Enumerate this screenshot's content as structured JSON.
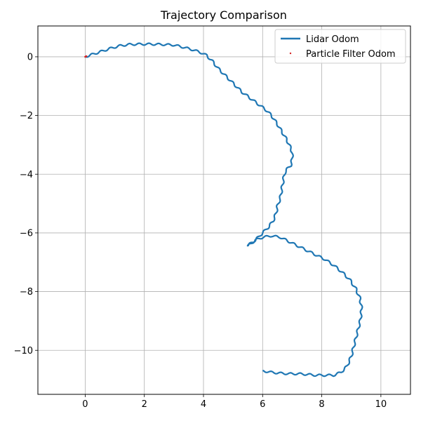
{
  "chart_data": {
    "type": "line",
    "title": "Trajectory Comparison",
    "xlabel": "",
    "ylabel": "",
    "xlim": [
      -1.6,
      11.0
    ],
    "ylim": [
      -11.5,
      1.05
    ],
    "xticks": [
      0,
      2,
      4,
      6,
      8,
      10
    ],
    "yticks": [
      0,
      -2,
      -4,
      -6,
      -8,
      -10
    ],
    "xtick_labels": [
      "0",
      "2",
      "4",
      "6",
      "8",
      "10"
    ],
    "ytick_labels": [
      "0",
      "−2",
      "−4",
      "−6",
      "−8",
      "−10"
    ],
    "grid": true,
    "legend_position": "upper right",
    "series": [
      {
        "name": "Lidar Odom",
        "color": "#1f77b4",
        "style": "line",
        "wiggle": true,
        "x": [
          0,
          0.3,
          0.6,
          0.9,
          1.2,
          1.5,
          1.8,
          2.2,
          2.6,
          3.0,
          3.3,
          3.6,
          3.9,
          4.1,
          4.3,
          4.5,
          4.7,
          4.9,
          5.1,
          5.3,
          5.5,
          5.7,
          5.9,
          6.1,
          6.3,
          6.5,
          6.65,
          6.8,
          6.9,
          7.0,
          7.0,
          6.95,
          6.85,
          6.75,
          6.7,
          6.65,
          6.6,
          6.5,
          6.45,
          6.35,
          6.2,
          6.05,
          5.9,
          5.75,
          5.6,
          5.5,
          5.75,
          6.0,
          6.3,
          6.6,
          6.9,
          7.2,
          7.5,
          7.8,
          8.1,
          8.4,
          8.7,
          8.95,
          9.15,
          9.3,
          9.35,
          9.3,
          9.2,
          9.1,
          9.0,
          8.85,
          8.65,
          8.4,
          8.1,
          7.8,
          7.5,
          7.2,
          6.9,
          6.6,
          6.3,
          6.0
        ],
        "y": [
          0,
          0.1,
          0.2,
          0.3,
          0.38,
          0.42,
          0.43,
          0.43,
          0.42,
          0.4,
          0.33,
          0.25,
          0.15,
          0.05,
          -0.15,
          -0.4,
          -0.6,
          -0.8,
          -1.0,
          -1.2,
          -1.35,
          -1.5,
          -1.65,
          -1.8,
          -2.0,
          -2.3,
          -2.55,
          -2.8,
          -3.0,
          -3.25,
          -3.5,
          -3.7,
          -3.8,
          -3.95,
          -4.2,
          -4.5,
          -4.8,
          -5.1,
          -5.35,
          -5.6,
          -5.8,
          -5.95,
          -6.1,
          -6.25,
          -6.35,
          -6.45,
          -6.25,
          -6.15,
          -6.1,
          -6.15,
          -6.3,
          -6.45,
          -6.6,
          -6.75,
          -6.9,
          -7.1,
          -7.35,
          -7.6,
          -7.9,
          -8.25,
          -8.6,
          -9.0,
          -9.4,
          -9.8,
          -10.2,
          -10.55,
          -10.75,
          -10.85,
          -10.85,
          -10.85,
          -10.82,
          -10.8,
          -10.8,
          -10.78,
          -10.75,
          -10.7
        ]
      },
      {
        "name": "Particle Filter Odom",
        "color": "#d62728",
        "style": "points",
        "x": [
          0,
          0.02,
          0.04
        ],
        "y": [
          0,
          0.01,
          0.02
        ]
      }
    ]
  }
}
